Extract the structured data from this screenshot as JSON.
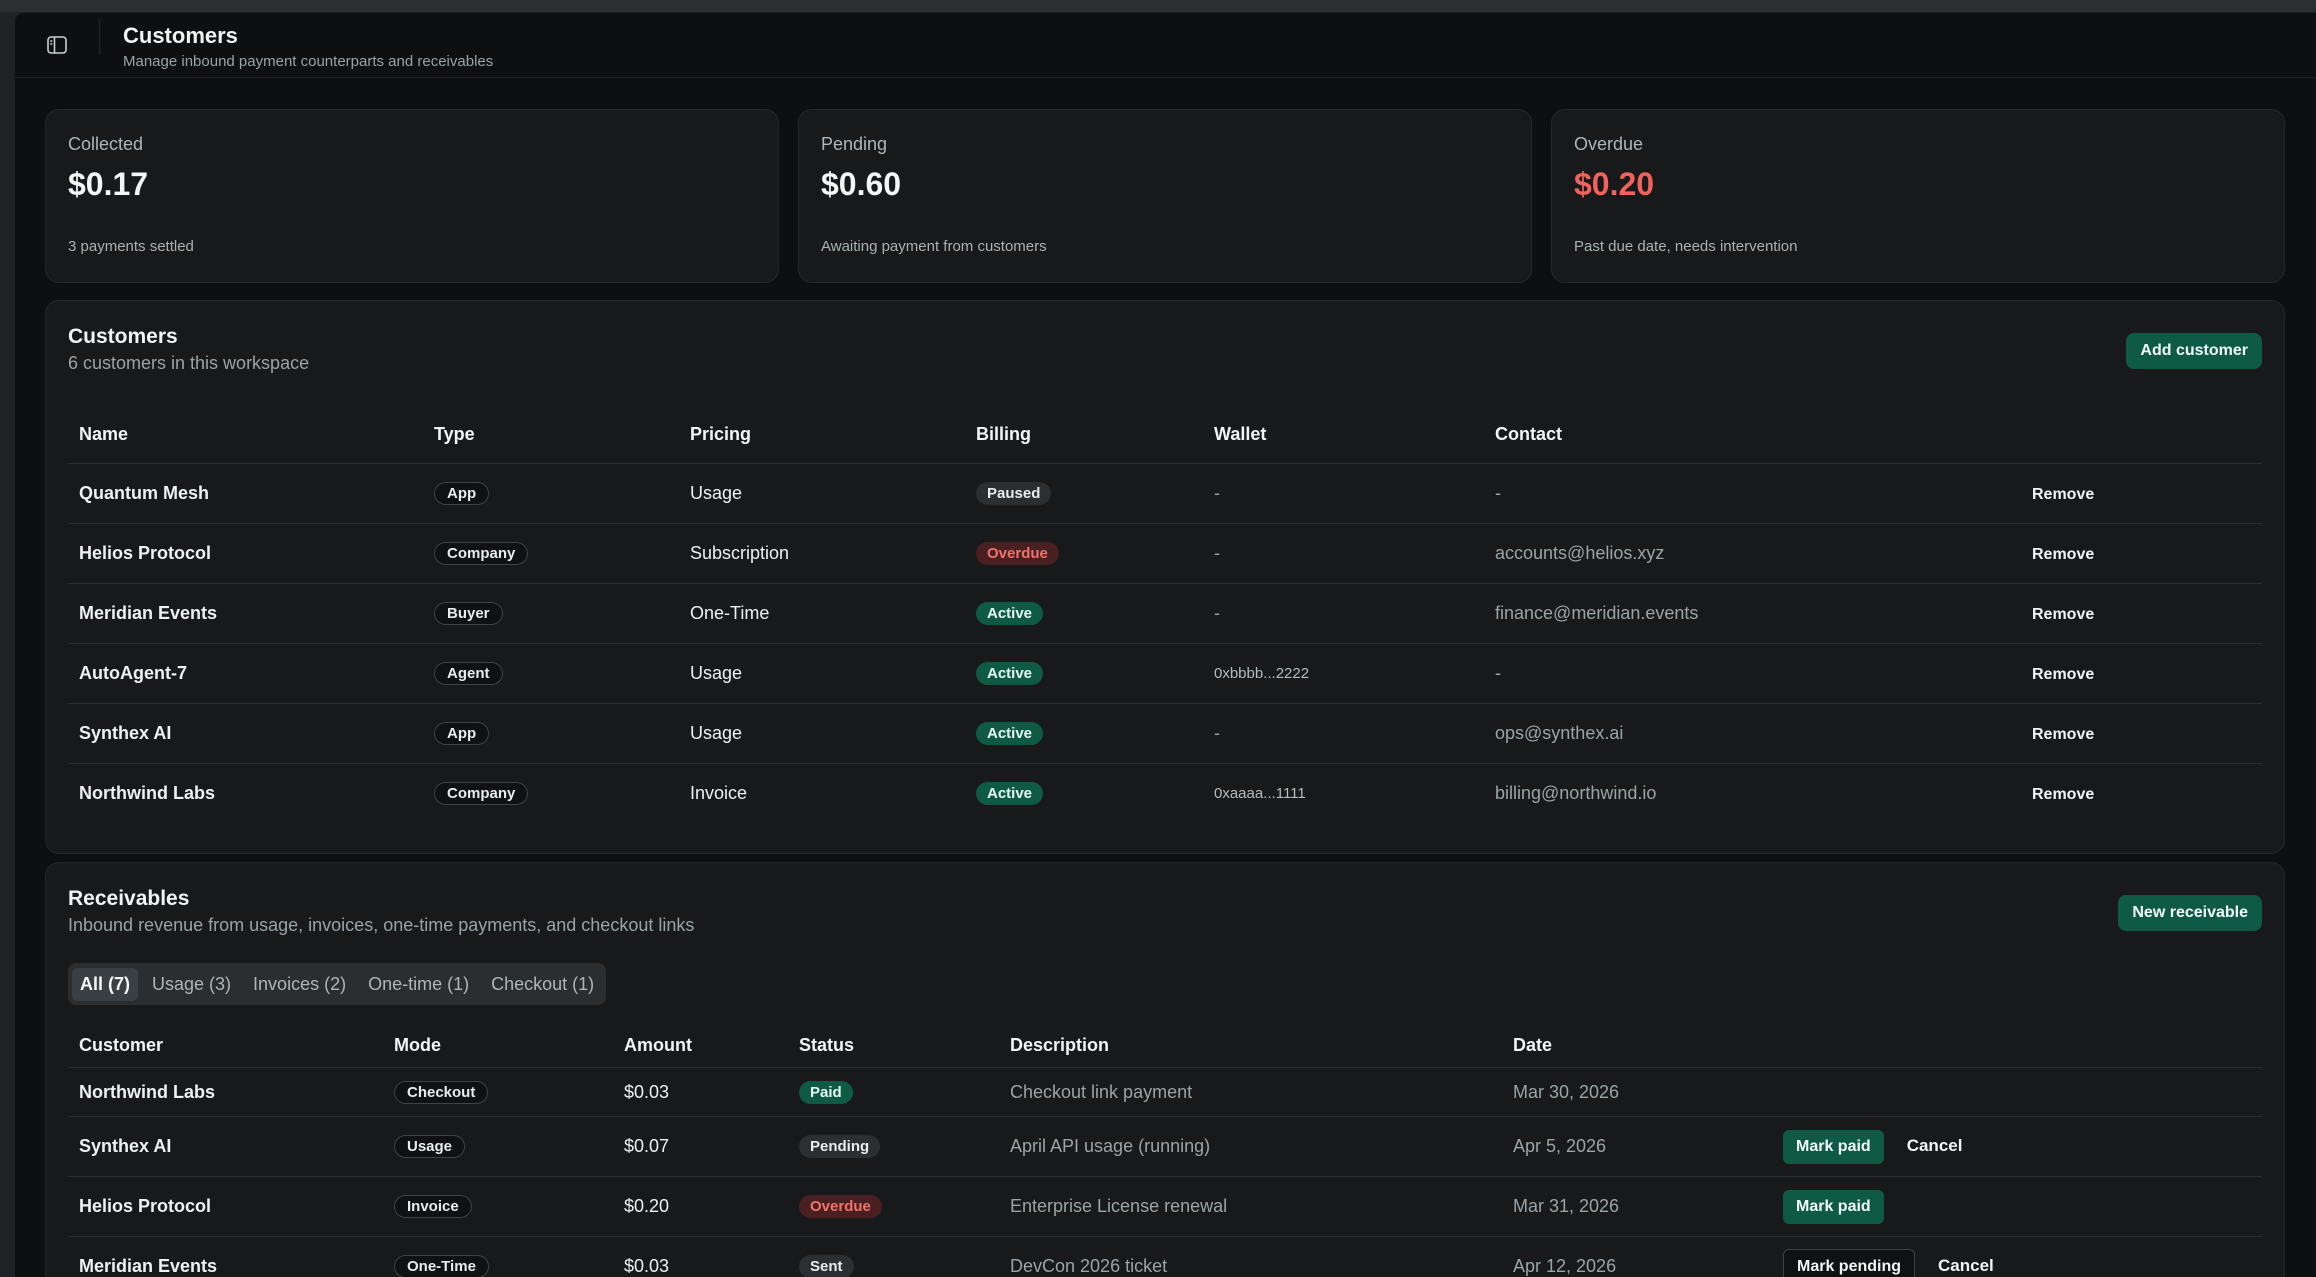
{
  "header": {
    "title": "Customers",
    "subtitle": "Manage inbound payment counterparts and receivables"
  },
  "stats": [
    {
      "label": "Collected",
      "value": "$0.17",
      "note": "3 payments settled"
    },
    {
      "label": "Pending",
      "value": "$0.60",
      "note": "Awaiting payment from customers"
    },
    {
      "label": "Overdue",
      "value": "$0.20",
      "note": "Past due date, needs intervention",
      "value_color": "#f0625c"
    }
  ],
  "customers": {
    "title": "Customers",
    "subtitle": "6 customers in this workspace",
    "add_label": "Add customer",
    "columns": [
      "Name",
      "Type",
      "Pricing",
      "Billing",
      "Wallet",
      "Contact"
    ],
    "rows": [
      {
        "name": "Quantum Mesh",
        "type": "App",
        "pricing": "Usage",
        "billing": "Paused",
        "wallet": "-",
        "contact": "-",
        "action": "Remove"
      },
      {
        "name": "Helios Protocol",
        "type": "Company",
        "pricing": "Subscription",
        "billing": "Overdue",
        "wallet": "-",
        "contact": "accounts@helios.xyz",
        "action": "Remove"
      },
      {
        "name": "Meridian Events",
        "type": "Buyer",
        "pricing": "One-Time",
        "billing": "Active",
        "wallet": "-",
        "contact": "finance@meridian.events",
        "action": "Remove"
      },
      {
        "name": "AutoAgent-7",
        "type": "Agent",
        "pricing": "Usage",
        "billing": "Active",
        "wallet": "0xbbbb...2222",
        "contact": "-",
        "action": "Remove"
      },
      {
        "name": "Synthex AI",
        "type": "App",
        "pricing": "Usage",
        "billing": "Active",
        "wallet": "-",
        "contact": "ops@synthex.ai",
        "action": "Remove"
      },
      {
        "name": "Northwind Labs",
        "type": "Company",
        "pricing": "Invoice",
        "billing": "Active",
        "wallet": "0xaaaa...1111",
        "contact": "billing@northwind.io",
        "action": "Remove"
      }
    ]
  },
  "receivables": {
    "title": "Receivables",
    "subtitle": "Inbound revenue from usage, invoices, one-time payments, and checkout links",
    "new_label": "New receivable",
    "tabs": [
      "All (7)",
      "Usage (3)",
      "Invoices (2)",
      "One-time (1)",
      "Checkout (1)"
    ],
    "active_tab": "All (7)",
    "columns": [
      "Customer",
      "Mode",
      "Amount",
      "Status",
      "Description",
      "Date"
    ],
    "rows": [
      {
        "customer": "Northwind Labs",
        "mode": "Checkout",
        "amount": "$0.03",
        "status": "Paid",
        "description": "Checkout link payment",
        "date": "Mar 30, 2026",
        "actions": []
      },
      {
        "customer": "Synthex AI",
        "mode": "Usage",
        "amount": "$0.07",
        "status": "Pending",
        "description": "April API usage (running)",
        "date": "Apr 5, 2026",
        "actions": [
          "Mark paid",
          "Cancel"
        ]
      },
      {
        "customer": "Helios Protocol",
        "mode": "Invoice",
        "amount": "$0.20",
        "status": "Overdue",
        "description": "Enterprise License renewal",
        "date": "Mar 31, 2026",
        "actions": [
          "Mark paid"
        ]
      },
      {
        "customer": "Meridian Events",
        "mode": "One-Time",
        "amount": "$0.03",
        "status": "Sent",
        "description": "DevCon 2026 ticket",
        "date": "Apr 12, 2026",
        "actions": [
          "Mark pending",
          "Cancel"
        ]
      }
    ]
  },
  "colors": {
    "accent_green": "#0f5a45",
    "overdue_red": "#f0625c",
    "background": "#0d0f10",
    "card": "#17191b"
  },
  "icons": {
    "sidebar_toggle": "sidebar-toggle-icon"
  }
}
